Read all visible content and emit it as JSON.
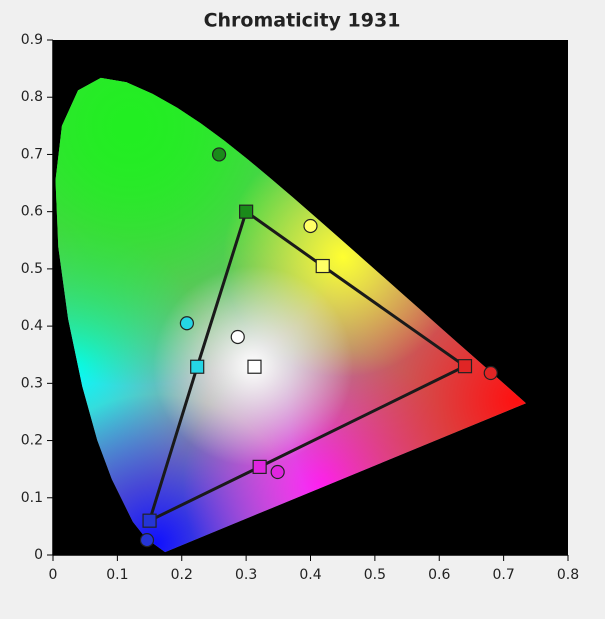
{
  "chart_data": {
    "type": "chromaticity",
    "title": "Chromaticity 1931",
    "xlim": [
      0,
      0.8
    ],
    "ylim": [
      0,
      0.9
    ],
    "xticks": [
      0,
      0.1,
      0.2,
      0.3,
      0.4,
      0.5,
      0.6,
      0.7,
      0.8
    ],
    "yticks": [
      0,
      0.1,
      0.2,
      0.3,
      0.4,
      0.5,
      0.6,
      0.7,
      0.8,
      0.9
    ],
    "locus": {
      "x": [
        0.1741,
        0.144,
        0.1241,
        0.0913,
        0.0687,
        0.0454,
        0.0235,
        0.0082,
        0.0039,
        0.0139,
        0.0389,
        0.0743,
        0.1142,
        0.1547,
        0.1929,
        0.2296,
        0.2658,
        0.3016,
        0.3373,
        0.3731,
        0.4087,
        0.4441,
        0.4788,
        0.5125,
        0.5448,
        0.5752,
        0.6029,
        0.627,
        0.6482,
        0.6658,
        0.6801,
        0.7347
      ],
      "y": [
        0.005,
        0.0297,
        0.0578,
        0.1327,
        0.2007,
        0.295,
        0.4127,
        0.5384,
        0.6548,
        0.7502,
        0.812,
        0.8338,
        0.8262,
        0.8059,
        0.7816,
        0.7543,
        0.7243,
        0.6923,
        0.6589,
        0.6245,
        0.5896,
        0.5547,
        0.5202,
        0.4866,
        0.4544,
        0.4242,
        0.3965,
        0.3725,
        0.3514,
        0.334,
        0.3197,
        0.2653
      ]
    },
    "series": [
      {
        "marker": "square",
        "closed": true,
        "x": [
          0.64,
          0.419,
          0.3,
          0.224,
          0.15,
          0.321
        ],
        "y": [
          0.33,
          0.505,
          0.6,
          0.329,
          0.06,
          0.154
        ],
        "colors": [
          "#e02525",
          "#ffff66",
          "#1a8a1a",
          "#25d5e5",
          "#2535d5",
          "#e025e0"
        ]
      },
      {
        "marker": "square",
        "closed": false,
        "x": [
          0.313
        ],
        "y": [
          0.329
        ],
        "colors": [
          "#ffffff"
        ]
      },
      {
        "marker": "circle",
        "closed": false,
        "x": [
          0.258,
          0.4,
          0.208,
          0.287,
          0.68,
          0.349,
          0.146
        ],
        "y": [
          0.7,
          0.575,
          0.405,
          0.381,
          0.318,
          0.145,
          0.026
        ],
        "colors": [
          "#1a8a1a",
          "#ffff66",
          "#25d5e5",
          "#ffffff",
          "#e02525",
          "#e025e0",
          "#2535d5"
        ]
      }
    ]
  }
}
